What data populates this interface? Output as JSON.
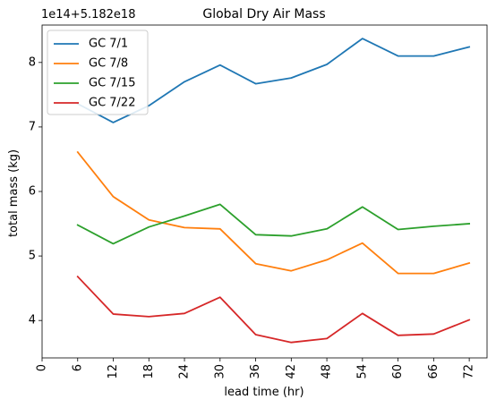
{
  "chart_data": {
    "type": "line",
    "title": "Global Dry Air Mass",
    "xlabel": "lead time (hr)",
    "ylabel": "total mass (kg)",
    "offset_text": "1e14+5.182e18",
    "x": [
      6,
      12,
      18,
      24,
      30,
      36,
      42,
      48,
      54,
      60,
      66,
      72
    ],
    "xticks": [
      0,
      6,
      12,
      18,
      24,
      30,
      36,
      42,
      48,
      54,
      60,
      66,
      72
    ],
    "yticks": [
      4,
      5,
      6,
      7,
      8
    ],
    "xlim": [
      0,
      75
    ],
    "ylim": [
      3.42,
      8.58
    ],
    "grid": false,
    "legend_position": "upper-left",
    "series": [
      {
        "name": "GC 7/1",
        "color": "#1f77b4",
        "values": [
          7.36,
          7.07,
          7.33,
          7.7,
          7.96,
          7.67,
          7.76,
          7.97,
          8.37,
          8.1,
          8.1,
          8.24
        ]
      },
      {
        "name": "GC 7/8",
        "color": "#ff7f0e",
        "values": [
          6.61,
          5.92,
          5.56,
          5.44,
          5.42,
          4.88,
          4.77,
          4.94,
          5.2,
          4.73,
          4.73,
          4.89
        ]
      },
      {
        "name": "GC 7/15",
        "color": "#2ca02c",
        "values": [
          5.48,
          5.19,
          5.45,
          5.62,
          5.8,
          5.33,
          5.31,
          5.42,
          5.76,
          5.41,
          5.46,
          5.5
        ]
      },
      {
        "name": "GC 7/22",
        "color": "#d62728",
        "values": [
          4.68,
          4.1,
          4.06,
          4.11,
          4.36,
          3.78,
          3.66,
          3.72,
          4.11,
          3.77,
          3.79,
          4.01
        ]
      }
    ]
  }
}
